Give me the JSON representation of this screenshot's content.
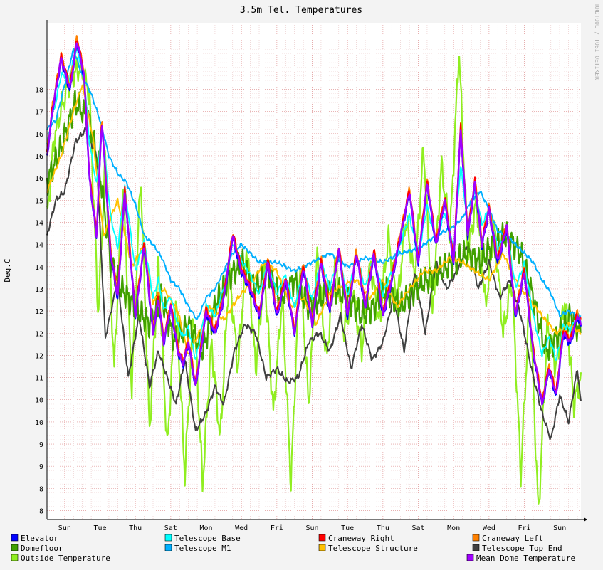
{
  "chart_data": {
    "type": "line",
    "title": "3.5m Tel. Temperatures",
    "ylabel": "Deg.C",
    "watermark": "RRDTOOL / TOBI OETIKER",
    "ylim": [
      7.8,
      19.0
    ],
    "y_ticks": [
      {
        "value": 8.0,
        "label": "8"
      },
      {
        "value": 8.5,
        "label": "8"
      },
      {
        "value": 9.0,
        "label": "9"
      },
      {
        "value": 9.5,
        "label": "9"
      },
      {
        "value": 10.0,
        "label": "10"
      },
      {
        "value": 10.5,
        "label": "10"
      },
      {
        "value": 11.0,
        "label": "11"
      },
      {
        "value": 11.5,
        "label": "12"
      },
      {
        "value": 12.0,
        "label": "12"
      },
      {
        "value": 12.5,
        "label": "12"
      },
      {
        "value": 13.0,
        "label": "13"
      },
      {
        "value": 13.5,
        "label": "14"
      },
      {
        "value": 14.0,
        "label": "14"
      },
      {
        "value": 14.5,
        "label": "14"
      },
      {
        "value": 15.0,
        "label": "15"
      },
      {
        "value": 15.5,
        "label": "16"
      },
      {
        "value": 16.0,
        "label": "16"
      },
      {
        "value": 16.5,
        "label": "16"
      },
      {
        "value": 17.0,
        "label": "17"
      },
      {
        "value": 17.5,
        "label": "18"
      }
    ],
    "x_ticks": [
      "Sun",
      "Tue",
      "Thu",
      "Sat",
      "Mon",
      "Wed",
      "Fri",
      "Sun",
      "Tue",
      "Thu",
      "Sat",
      "Mon",
      "Wed",
      "Fri",
      "Sun"
    ],
    "x_tick_days": [
      1,
      3,
      5,
      7,
      9,
      11,
      13,
      15,
      17,
      19,
      21,
      23,
      25,
      27,
      29
    ],
    "x_range_days": [
      0,
      30.2
    ],
    "grid": true,
    "legend_placement": "bottom",
    "series": [
      {
        "name": "Elevator",
        "color": "#0000ff",
        "offset": 0.0
      },
      {
        "name": "Telescope Base",
        "color": "#00ffff",
        "offset": 0.15
      },
      {
        "name": "Craneway Right",
        "color": "#ff0000",
        "offset": 0.05
      },
      {
        "name": "Craneway Left",
        "color": "#ff8000",
        "offset": 0.08
      },
      {
        "name": "Domefloor",
        "color": "#40a000",
        "offset": 0.0
      },
      {
        "name": "Telescope M1",
        "color": "#00b0ff",
        "offset": 0.0
      },
      {
        "name": "Telescope Structure",
        "color": "#ffc000",
        "offset": 0.0
      },
      {
        "name": "Telescope Top End",
        "color": "#404040",
        "offset": 0.0
      },
      {
        "name": "Outside Temperature",
        "color": "#90ee20",
        "offset": 0.0
      },
      {
        "name": "Mean Dome Temperature",
        "color": "#a000ff",
        "offset": 0.0
      }
    ],
    "dome_profile": {
      "x": [
        0,
        0.3,
        0.8,
        1.3,
        1.7,
        2.1,
        2.4,
        2.8,
        3.1,
        3.6,
        4.0,
        4.4,
        5.0,
        5.5,
        6.0,
        6.3,
        6.6,
        7.0,
        7.4,
        7.7,
        8.0,
        8.4,
        8.7,
        9.0,
        9.5,
        10.0,
        10.5,
        11.0,
        11.5,
        12.0,
        12.5,
        13.0,
        13.5,
        14.0,
        14.5,
        15.0,
        15.5,
        16.0,
        16.5,
        17.0,
        17.5,
        18.0,
        18.5,
        19.0,
        19.5,
        20.0,
        20.5,
        21.0,
        21.5,
        22.0,
        22.5,
        23.0,
        23.4,
        23.8,
        24.2,
        24.6,
        25.0,
        25.5,
        26.0,
        26.5,
        27.0,
        27.5,
        28.0,
        28.4,
        28.8,
        29.2,
        29.6,
        30.0,
        30.2
      ],
      "y": [
        16.0,
        17.0,
        18.2,
        17.5,
        18.6,
        17.8,
        15.5,
        14.2,
        16.8,
        13.8,
        12.8,
        15.2,
        12.4,
        14.0,
        12.0,
        12.8,
        11.8,
        12.6,
        11.6,
        11.3,
        11.8,
        10.8,
        11.6,
        12.5,
        12.0,
        12.8,
        14.2,
        13.4,
        13.0,
        12.4,
        13.6,
        12.4,
        13.2,
        12.0,
        13.5,
        12.2,
        13.6,
        12.5,
        13.9,
        12.4,
        13.8,
        12.6,
        13.8,
        12.4,
        13.2,
        14.2,
        15.2,
        13.6,
        15.4,
        14.0,
        15.0,
        13.6,
        16.6,
        14.2,
        15.4,
        14.0,
        14.8,
        13.6,
        14.4,
        12.4,
        13.4,
        11.6,
        10.4,
        11.2,
        10.6,
        12.0,
        11.8,
        12.4,
        12.2
      ]
    },
    "m1_profile": {
      "x": [
        0,
        0.5,
        1.0,
        1.5,
        2.0,
        2.5,
        3.0,
        3.5,
        4.0,
        4.5,
        5.0,
        5.5,
        6.0,
        6.5,
        7.0,
        7.5,
        8.0,
        8.5,
        9.0,
        9.5,
        10.0,
        10.5,
        11.0,
        11.5,
        12.0,
        13.0,
        14.0,
        15.0,
        16.0,
        17.0,
        18.0,
        19.0,
        20.0,
        21.0,
        22.0,
        23.0,
        23.5,
        24.0,
        24.5,
        25.0,
        25.5,
        26.0,
        26.5,
        27.0,
        27.5,
        28.0,
        28.5,
        29.0,
        29.5,
        30.0,
        30.2
      ],
      "y": [
        16.6,
        16.8,
        17.6,
        18.4,
        17.8,
        17.4,
        16.8,
        16.0,
        15.6,
        15.4,
        14.9,
        14.2,
        14.0,
        13.7,
        13.2,
        13.0,
        12.6,
        12.3,
        12.8,
        13.0,
        13.4,
        13.8,
        14.0,
        13.8,
        13.6,
        13.6,
        13.4,
        13.6,
        13.8,
        13.5,
        13.7,
        13.6,
        13.8,
        13.9,
        14.2,
        14.4,
        14.6,
        15.0,
        15.2,
        14.8,
        14.3,
        14.2,
        14.0,
        13.8,
        13.6,
        13.2,
        12.9,
        12.4,
        12.5,
        12.4,
        12.4
      ]
    },
    "structure_profile": {
      "x": [
        0,
        0.8,
        1.5,
        2.0,
        2.6,
        3.2,
        4.0,
        4.8,
        5.5,
        6.0,
        6.6,
        7.4,
        8.0,
        8.6,
        9.2,
        10.0,
        10.8,
        11.5,
        12.3,
        13.0,
        13.8,
        14.5,
        15.2,
        16.0,
        16.8,
        17.5,
        18.3,
        19.0,
        19.8,
        20.5,
        21.3,
        22.0,
        22.8,
        23.5,
        24.2,
        25.0,
        25.8,
        26.5,
        27.2,
        28.0,
        28.8,
        29.5,
        30.2
      ],
      "y": [
        15.2,
        16.0,
        17.0,
        17.6,
        16.4,
        14.2,
        15.0,
        13.5,
        14.0,
        12.7,
        13.0,
        12.5,
        11.5,
        12.0,
        12.6,
        12.3,
        12.8,
        13.1,
        13.6,
        13.4,
        12.6,
        12.8,
        12.2,
        12.9,
        13.1,
        13.2,
        12.8,
        13.2,
        12.6,
        13.0,
        13.4,
        13.4,
        13.7,
        13.6,
        13.4,
        13.2,
        13.8,
        13.2,
        12.8,
        12.4,
        12.0,
        12.2,
        12.0
      ]
    },
    "domefloor_profile": {
      "x": [
        0,
        0.8,
        1.6,
        2.4,
        3.0,
        3.6,
        4.2,
        5.0,
        5.8,
        6.5,
        7.2,
        8.0,
        8.8,
        9.5,
        10.2,
        11.0,
        11.8,
        12.5,
        13.2,
        14.0,
        14.8,
        15.5,
        16.2,
        17.0,
        17.8,
        18.5,
        19.2,
        20.0,
        20.8,
        21.5,
        22.2,
        23.0,
        23.8,
        24.5,
        25.2,
        26.0,
        26.8,
        27.5,
        28.2,
        29.0,
        29.6,
        30.2
      ],
      "y": [
        15.4,
        16.2,
        17.2,
        16.8,
        15.6,
        13.6,
        13.0,
        12.6,
        12.2,
        12.8,
        11.8,
        12.2,
        11.6,
        12.6,
        13.2,
        13.6,
        13.0,
        13.4,
        12.8,
        13.2,
        12.6,
        12.8,
        13.0,
        12.8,
        12.4,
        12.6,
        13.0,
        12.6,
        13.0,
        13.2,
        13.4,
        13.6,
        13.8,
        13.6,
        14.0,
        14.2,
        13.8,
        12.8,
        11.6,
        12.0,
        12.4,
        12.0
      ]
    },
    "topend_profile": {
      "x": [
        0,
        0.5,
        1.0,
        1.6,
        2.2,
        2.8,
        3.3,
        4.0,
        4.6,
        5.2,
        5.8,
        6.3,
        6.8,
        7.3,
        7.8,
        8.4,
        9.0,
        9.5,
        10.0,
        10.6,
        11.2,
        11.8,
        12.4,
        13.0,
        13.6,
        14.2,
        14.8,
        15.4,
        16.0,
        16.6,
        17.2,
        17.8,
        18.4,
        19.0,
        19.6,
        20.2,
        20.8,
        21.4,
        22.0,
        22.6,
        23.2,
        23.8,
        24.4,
        25.0,
        25.6,
        26.2,
        26.8,
        27.4,
        28.0,
        28.5,
        29.0,
        29.5,
        30.0,
        30.2
      ],
      "y": [
        14.2,
        15.0,
        15.2,
        16.3,
        16.6,
        16.0,
        11.9,
        13.2,
        11.0,
        12.4,
        10.8,
        11.6,
        11.0,
        10.4,
        11.4,
        9.8,
        10.2,
        10.8,
        10.4,
        11.6,
        12.2,
        12.0,
        11.0,
        11.2,
        10.9,
        11.0,
        11.8,
        12.0,
        11.6,
        12.4,
        11.2,
        12.2,
        11.4,
        11.8,
        12.8,
        11.6,
        13.4,
        12.0,
        13.6,
        13.0,
        13.4,
        14.0,
        13.0,
        13.6,
        12.8,
        13.2,
        12.4,
        11.2,
        10.2,
        9.6,
        10.6,
        10.0,
        11.2,
        10.4
      ]
    },
    "outside_profile": {
      "x": [
        0,
        0.4,
        0.9,
        1.4,
        1.9,
        2.4,
        2.9,
        3.3,
        3.8,
        4.3,
        4.8,
        5.3,
        5.8,
        6.3,
        6.8,
        7.3,
        7.8,
        8.3,
        8.8,
        9.3,
        9.8,
        10.3,
        10.8,
        11.3,
        11.8,
        12.3,
        12.8,
        13.3,
        13.8,
        14.3,
        14.8,
        15.3,
        15.8,
        16.3,
        16.8,
        17.3,
        17.8,
        18.3,
        18.8,
        19.3,
        19.8,
        20.3,
        20.8,
        21.3,
        21.8,
        22.3,
        22.8,
        23.3,
        23.8,
        24.3,
        24.8,
        25.3,
        25.8,
        26.3,
        26.8,
        27.3,
        27.8,
        28.3,
        28.8,
        29.3,
        29.8,
        30.2
      ],
      "y": [
        14.6,
        16.4,
        17.2,
        17.8,
        18.0,
        17.4,
        12.4,
        16.0,
        11.2,
        15.4,
        10.8,
        15.6,
        9.8,
        13.6,
        9.4,
        12.8,
        8.8,
        12.6,
        8.6,
        11.8,
        9.6,
        13.4,
        11.2,
        14.0,
        11.2,
        13.4,
        10.2,
        12.8,
        8.6,
        13.6,
        10.4,
        13.8,
        11.4,
        13.6,
        12.0,
        13.0,
        11.6,
        13.6,
        12.2,
        14.2,
        12.6,
        14.6,
        13.2,
        16.2,
        12.4,
        15.8,
        14.2,
        18.4,
        13.8,
        15.0,
        12.6,
        14.4,
        12.0,
        13.2,
        8.8,
        12.8,
        7.9,
        12.2,
        11.2,
        12.8,
        10.4,
        11.0
      ]
    }
  },
  "legend_rows": [
    [
      {
        "label": "Elevator",
        "color": "#0000ff"
      },
      {
        "label": "Telescope Base",
        "color": "#00ffff"
      },
      {
        "label": "Craneway Right",
        "color": "#ff0000"
      },
      {
        "label": "Craneway Left",
        "color": "#ff8000"
      }
    ],
    [
      {
        "label": "Domefloor",
        "color": "#40a000"
      },
      {
        "label": "Telescope M1",
        "color": "#00b0ff"
      },
      {
        "label": "Telescope Structure",
        "color": "#ffc000"
      },
      {
        "label": "Telescope Top End",
        "color": "#404040"
      }
    ],
    [
      {
        "label": "Outside Temperature",
        "color": "#90ee20"
      },
      {
        "label": "Mean Dome Temperature",
        "color": "#a000ff"
      }
    ]
  ]
}
